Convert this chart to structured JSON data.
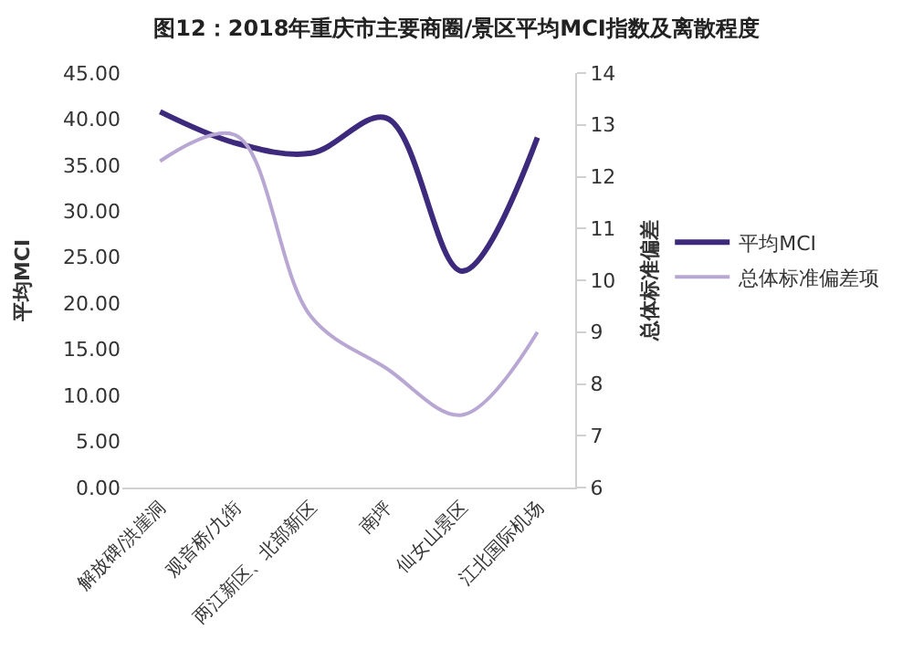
{
  "chart_data": {
    "type": "line",
    "title": "图12：2018年重庆市主要商圈/景区平均MCI指数及离散程度",
    "ylabel": "平均MCI",
    "y2label": "总体标准偏差",
    "categories": [
      "解放碑/洪崖洞",
      "观音桥/九街",
      "两江新区、北部新区",
      "南坪",
      "仙女山景区",
      "江北国际机场"
    ],
    "series": [
      {
        "name": "平均MCI",
        "color": "#3d2a7d",
        "values": [
          40.8,
          37.4,
          36.3,
          40.1,
          23.5,
          38.0
        ]
      },
      {
        "name": "总体标准偏差项",
        "color": "#b9a7d3",
        "axis": "y2",
        "values": [
          12.3,
          12.8,
          9.3,
          8.3,
          7.4,
          9.0
        ]
      }
    ],
    "ylim": [
      0,
      45
    ],
    "yticks": [
      {
        "value": 0,
        "label": "0.00"
      },
      {
        "value": 5,
        "label": "5.00"
      },
      {
        "value": 10,
        "label": "10.00"
      },
      {
        "value": 15,
        "label": "15.00"
      },
      {
        "value": 20,
        "label": "20.00"
      },
      {
        "value": 25,
        "label": "25.00"
      },
      {
        "value": 30,
        "label": "30.00"
      },
      {
        "value": 35,
        "label": "35.00"
      },
      {
        "value": 40,
        "label": "40.00"
      },
      {
        "value": 45,
        "label": "45.00"
      }
    ],
    "y2lim": [
      6,
      14
    ],
    "y2ticks": [
      6,
      7,
      8,
      9,
      10,
      11,
      12,
      13,
      14
    ],
    "legend": "right",
    "marker": "none",
    "line_style": "solid"
  }
}
